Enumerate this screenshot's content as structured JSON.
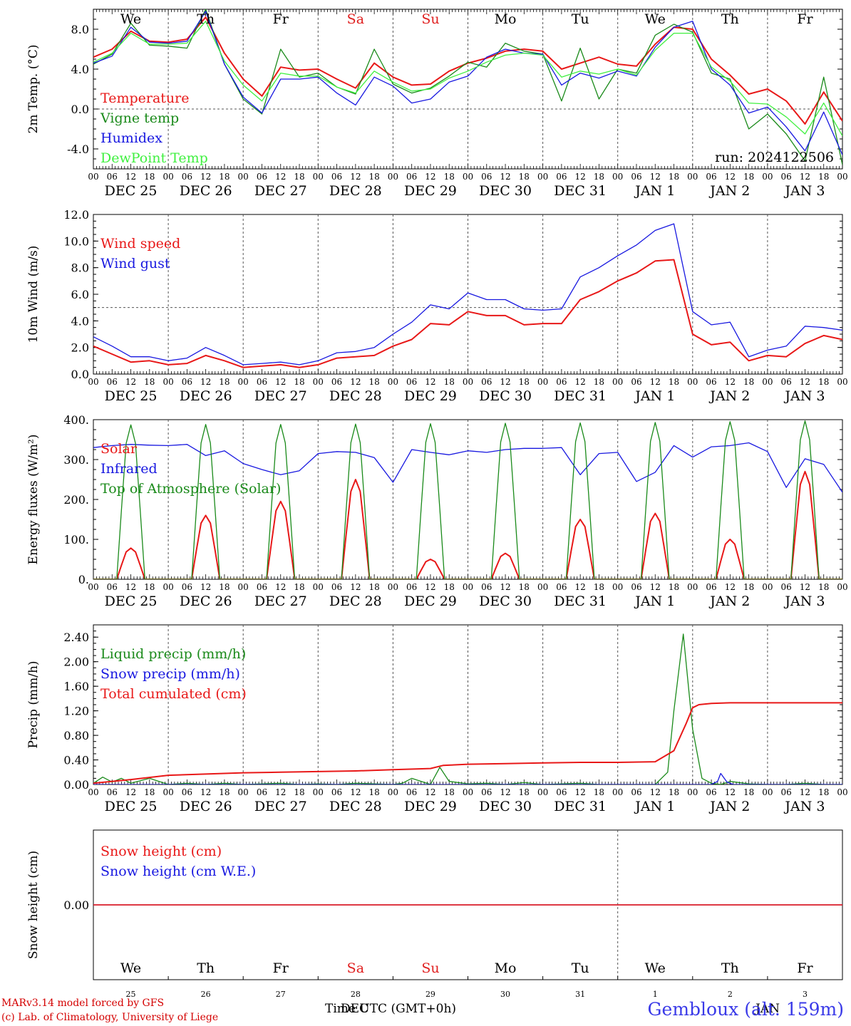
{
  "chart_data": [
    {
      "type": "line",
      "ylabel": "2m Temp. (°C)",
      "ylim": [
        -6,
        10
      ],
      "y_ticks": [
        "-4.0",
        "0.0",
        "4.0",
        "8.0"
      ],
      "y_tick_values": [
        -4,
        0,
        4,
        8
      ],
      "reference_line": 0,
      "day_labels": [
        "We",
        "Th",
        "Fr",
        "Sa",
        "Su",
        "Mo",
        "Tu",
        "We",
        "Th",
        "Fr"
      ],
      "weekend_color": "#e02020",
      "annotation": "run: 2024122506",
      "x_unit": "hours since 2024-12-25 00 UTC",
      "legend_placement": "left",
      "series": [
        {
          "name": "Temperature",
          "color": "#e81818",
          "x": [
            0,
            6,
            12,
            18,
            24,
            30,
            36,
            42,
            48,
            54,
            60,
            66,
            72,
            78,
            84,
            90,
            96,
            102,
            108,
            114,
            120,
            126,
            132,
            138,
            144,
            150,
            156,
            162,
            168,
            174,
            180,
            186,
            192,
            198,
            204,
            210,
            216,
            222,
            228,
            234,
            240
          ],
          "y": [
            5.2,
            6.0,
            7.8,
            6.8,
            6.7,
            7.0,
            9.2,
            5.6,
            3.0,
            1.3,
            4.2,
            3.9,
            4.0,
            3.0,
            2.1,
            4.6,
            3.2,
            2.4,
            2.5,
            3.8,
            4.6,
            5.1,
            5.8,
            6.0,
            5.8,
            4.0,
            4.6,
            5.2,
            4.5,
            4.3,
            6.5,
            8.2,
            8.0,
            5.0,
            3.4,
            1.5,
            2.0,
            0.8,
            -1.5,
            1.7,
            -1.2
          ]
        },
        {
          "name": "Vigne temp",
          "color": "#1a8a1a",
          "x": [
            0,
            6,
            12,
            18,
            24,
            30,
            36,
            42,
            48,
            54,
            60,
            66,
            72,
            78,
            84,
            90,
            96,
            102,
            108,
            114,
            120,
            126,
            132,
            138,
            144,
            150,
            156,
            162,
            168,
            174,
            180,
            186,
            192,
            198,
            204,
            210,
            216,
            222,
            228,
            234,
            240
          ],
          "y": [
            4.5,
            5.5,
            8.6,
            6.4,
            6.3,
            6.1,
            10.0,
            4.5,
            1.0,
            -0.5,
            6.0,
            3.2,
            3.6,
            2.2,
            1.5,
            6.0,
            2.5,
            1.6,
            2.1,
            3.3,
            4.7,
            4.2,
            6.6,
            5.8,
            5.5,
            0.8,
            6.1,
            1.0,
            4.0,
            3.6,
            7.4,
            8.5,
            7.7,
            3.6,
            3.0,
            -2.0,
            -0.5,
            -2.5,
            -5.2,
            3.2,
            -5.6
          ]
        },
        {
          "name": "Humidex",
          "color": "#1818e0",
          "x": [
            0,
            6,
            12,
            18,
            24,
            30,
            36,
            42,
            48,
            54,
            60,
            66,
            72,
            78,
            84,
            90,
            96,
            102,
            108,
            114,
            120,
            126,
            132,
            138,
            144,
            150,
            156,
            162,
            168,
            174,
            180,
            186,
            192,
            198,
            204,
            210,
            216,
            222,
            228,
            234,
            240
          ],
          "y": [
            4.6,
            5.3,
            8.2,
            6.7,
            6.6,
            6.8,
            9.8,
            4.5,
            1.2,
            -0.4,
            3.0,
            3.0,
            3.2,
            1.6,
            0.4,
            3.2,
            2.3,
            0.6,
            1.0,
            2.7,
            3.3,
            5.2,
            6.0,
            5.6,
            5.5,
            2.4,
            3.6,
            3.1,
            3.8,
            3.3,
            6.2,
            8.2,
            8.8,
            4.0,
            2.4,
            -0.4,
            0.2,
            -1.8,
            -4.2,
            -0.3,
            -4.6
          ]
        },
        {
          "name": "DewPoint Temp",
          "color": "#40f040",
          "x": [
            0,
            6,
            12,
            18,
            24,
            30,
            36,
            42,
            48,
            54,
            60,
            66,
            72,
            78,
            84,
            90,
            96,
            102,
            108,
            114,
            120,
            126,
            132,
            138,
            144,
            150,
            156,
            162,
            168,
            174,
            180,
            186,
            192,
            198,
            204,
            210,
            216,
            222,
            228,
            234,
            240
          ],
          "y": [
            4.7,
            5.6,
            7.6,
            6.5,
            6.5,
            6.6,
            8.8,
            4.8,
            2.4,
            0.8,
            3.6,
            3.3,
            3.3,
            2.2,
            1.6,
            3.8,
            2.7,
            1.8,
            2.0,
            3.1,
            3.8,
            4.7,
            5.4,
            5.6,
            5.4,
            3.2,
            3.8,
            3.5,
            4.0,
            3.4,
            5.9,
            7.6,
            7.6,
            4.2,
            2.8,
            0.6,
            0.5,
            -0.8,
            -2.5,
            0.6,
            -2.7
          ]
        }
      ]
    },
    {
      "type": "line",
      "ylabel": "10m Wind (m/s)",
      "ylim": [
        0,
        12
      ],
      "y_ticks": [
        "0.0",
        "2.0",
        "4.0",
        "6.0",
        "8.0",
        "10.0",
        "12.0"
      ],
      "y_tick_values": [
        0,
        2,
        4,
        6,
        8,
        10,
        12
      ],
      "reference_line": 5,
      "date_labels": [
        "DEC 25",
        "DEC 26",
        "DEC 27",
        "DEC 28",
        "DEC 29",
        "DEC 30",
        "DEC 31",
        "JAN  1",
        "JAN  2",
        "JAN  3"
      ],
      "hour_labels": [
        "00",
        "06",
        "12",
        "18"
      ],
      "x_unit": "hours since 2024-12-25 00 UTC",
      "legend_placement": "left",
      "series": [
        {
          "name": "Wind speed",
          "color": "#e81818",
          "x": [
            0,
            6,
            12,
            18,
            24,
            30,
            36,
            42,
            48,
            54,
            60,
            66,
            72,
            78,
            84,
            90,
            96,
            102,
            108,
            114,
            120,
            126,
            132,
            138,
            144,
            150,
            156,
            162,
            168,
            174,
            180,
            186,
            192,
            198,
            204,
            210,
            216,
            222,
            228,
            234,
            240
          ],
          "y": [
            2.1,
            1.5,
            0.9,
            1.0,
            0.7,
            0.8,
            1.4,
            1.0,
            0.5,
            0.6,
            0.7,
            0.5,
            0.7,
            1.2,
            1.3,
            1.4,
            2.1,
            2.6,
            3.8,
            3.7,
            4.7,
            4.4,
            4.4,
            3.7,
            3.8,
            3.8,
            5.6,
            6.2,
            7.0,
            7.6,
            8.5,
            8.6,
            3.0,
            2.2,
            2.4,
            1.0,
            1.4,
            1.3,
            2.3,
            2.9,
            2.6
          ]
        },
        {
          "name": "Wind gust",
          "color": "#1818e0",
          "x": [
            0,
            6,
            12,
            18,
            24,
            30,
            36,
            42,
            48,
            54,
            60,
            66,
            72,
            78,
            84,
            90,
            96,
            102,
            108,
            114,
            120,
            126,
            132,
            138,
            144,
            150,
            156,
            162,
            168,
            174,
            180,
            186,
            192,
            198,
            204,
            210,
            216,
            222,
            228,
            234,
            240
          ],
          "y": [
            2.8,
            2.1,
            1.3,
            1.3,
            1.0,
            1.2,
            2.0,
            1.4,
            0.7,
            0.8,
            0.9,
            0.7,
            1.0,
            1.6,
            1.7,
            2.0,
            3.0,
            3.9,
            5.2,
            4.9,
            6.1,
            5.6,
            5.6,
            4.9,
            4.8,
            4.9,
            7.3,
            8.0,
            8.9,
            9.7,
            10.8,
            11.3,
            4.7,
            3.7,
            3.9,
            1.3,
            1.8,
            2.1,
            3.6,
            3.5,
            3.3
          ]
        }
      ]
    },
    {
      "type": "line",
      "ylabel": "Energy fluxes (W/m²)",
      "ylim": [
        0,
        400
      ],
      "y_ticks": [
        "0.",
        "100.",
        "200.",
        "300.",
        "400."
      ],
      "y_tick_values": [
        0,
        100,
        200,
        300,
        400
      ],
      "date_labels": [
        "DEC 25",
        "DEC 26",
        "DEC 27",
        "DEC 28",
        "DEC 29",
        "DEC 30",
        "DEC 31",
        "JAN  1",
        "JAN  2",
        "JAN  3"
      ],
      "hour_labels": [
        "00",
        "06",
        "12",
        "18"
      ],
      "x_unit": "hours since 2024-12-25 00 UTC",
      "legend_placement": "left",
      "solar_peaks": [
        78,
        160,
        195,
        250,
        50,
        65,
        150,
        165,
        100,
        270
      ],
      "toa_peaks": [
        387,
        388,
        388,
        389,
        390,
        391,
        392,
        393,
        395,
        397
      ],
      "series": [
        {
          "name": "Solar",
          "color": "#e81818",
          "peaks": "solar_peaks"
        },
        {
          "name": "Infrared",
          "color": "#1818e0",
          "x": [
            0,
            6,
            12,
            18,
            24,
            30,
            36,
            42,
            48,
            54,
            60,
            66,
            72,
            78,
            84,
            90,
            96,
            102,
            108,
            114,
            120,
            126,
            132,
            138,
            144,
            150,
            156,
            162,
            168,
            174,
            180,
            186,
            192,
            198,
            204,
            210,
            216,
            222,
            228,
            234,
            240
          ],
          "y": [
            330,
            335,
            338,
            336,
            335,
            338,
            310,
            322,
            290,
            275,
            262,
            272,
            315,
            320,
            318,
            305,
            243,
            325,
            318,
            312,
            322,
            318,
            325,
            328,
            328,
            330,
            262,
            315,
            318,
            245,
            268,
            335,
            306,
            332,
            335,
            342,
            320,
            230,
            302,
            288,
            218
          ]
        },
        {
          "name": "Top of Atmosphere (Solar)",
          "color": "#1a8a1a",
          "peaks": "toa_peaks"
        }
      ]
    },
    {
      "type": "line",
      "ylabel": "Precip (mm/h)",
      "ylim": [
        0,
        2.6
      ],
      "y_ticks": [
        "0.00",
        "0.40",
        "0.80",
        "1.20",
        "1.60",
        "2.00",
        "2.40"
      ],
      "y_tick_values": [
        0,
        0.4,
        0.8,
        1.2,
        1.6,
        2.0,
        2.4
      ],
      "date_labels": [
        "DEC 25",
        "DEC 26",
        "DEC 27",
        "DEC 28",
        "DEC 29",
        "DEC 30",
        "DEC 31",
        "JAN  1",
        "JAN  2",
        "JAN  3"
      ],
      "hour_labels": [
        "00",
        "06",
        "12",
        "18"
      ],
      "x_unit": "hours since 2024-12-25 00 UTC",
      "legend_placement": "left",
      "series": [
        {
          "name": "Liquid precip (mm/h)",
          "color": "#1a8a1a",
          "x": [
            0,
            3,
            6,
            9,
            12,
            18,
            24,
            30,
            36,
            42,
            48,
            54,
            60,
            66,
            72,
            78,
            84,
            90,
            96,
            99,
            102,
            108,
            111,
            114,
            120,
            126,
            132,
            138,
            144,
            150,
            156,
            162,
            168,
            174,
            180,
            184,
            186,
            189,
            192,
            195,
            198,
            201,
            204,
            210,
            216,
            222,
            228,
            234,
            240
          ],
          "y": [
            0.02,
            0.12,
            0.04,
            0.1,
            0.02,
            0.1,
            0.0,
            0.02,
            0.0,
            0.02,
            0.0,
            0.01,
            0.02,
            0.0,
            0.01,
            0.0,
            0.02,
            0.01,
            0.0,
            0.02,
            0.1,
            0.0,
            0.28,
            0.05,
            0.01,
            0.02,
            0.0,
            0.03,
            0.0,
            0.01,
            0.02,
            0.0,
            0.0,
            0.0,
            0.0,
            0.2,
            1.2,
            2.45,
            0.9,
            0.1,
            0.02,
            0.0,
            0.05,
            0.01,
            0.0,
            0.0,
            0.02,
            0.0,
            0.0
          ]
        },
        {
          "name": "Snow precip (mm/h)",
          "color": "#1818e0",
          "x": [
            0,
            186,
            192,
            195,
            198,
            200,
            201,
            203,
            205,
            210,
            240
          ],
          "y": [
            0,
            0,
            0,
            0.0,
            0.0,
            0.05,
            0.18,
            0.04,
            0.0,
            0.0,
            0.0
          ]
        },
        {
          "name": "Total cumulated (cm)",
          "color": "#e81818",
          "x": [
            0,
            12,
            24,
            36,
            48,
            60,
            72,
            84,
            96,
            108,
            112,
            120,
            132,
            144,
            156,
            168,
            180,
            186,
            190,
            192,
            194,
            198,
            204,
            216,
            228,
            240
          ],
          "y": [
            0.02,
            0.08,
            0.15,
            0.17,
            0.19,
            0.2,
            0.21,
            0.22,
            0.24,
            0.26,
            0.31,
            0.33,
            0.34,
            0.35,
            0.36,
            0.36,
            0.37,
            0.55,
            1.0,
            1.25,
            1.3,
            1.32,
            1.33,
            1.33,
            1.33,
            1.33
          ]
        }
      ]
    },
    {
      "type": "line",
      "ylabel": "Snow height (cm)",
      "y_ticks": [
        "0.00"
      ],
      "y_tick_values": [
        0
      ],
      "ylim": [
        -0.9,
        0.9
      ],
      "day_labels": [
        "We",
        "Th",
        "Fr",
        "Sa",
        "Su",
        "Mo",
        "Tu",
        "We",
        "Th",
        "Fr"
      ],
      "day_numbers": [
        "25",
        "26",
        "27",
        "28",
        "29",
        "30",
        "31",
        "1",
        "2",
        "3"
      ],
      "x_unit": "hours since 2024-12-25 00 UTC",
      "legend_placement": "left",
      "series": [
        {
          "name": "Snow height (cm)",
          "color": "#e81818",
          "x": [
            0,
            240
          ],
          "y": [
            0,
            0
          ]
        },
        {
          "name": "Snow height (cm W.E.)",
          "color": "#1818e0",
          "x": [
            0,
            240
          ],
          "y": [
            0,
            0
          ]
        }
      ]
    }
  ],
  "footer": {
    "model": "MARv3.14 model forced by GFS",
    "lab": "(c) Lab. of Climatology, University of Liege",
    "xlabel": "Time UTC (GMT+0h)",
    "month_dec": "DEC",
    "month_jan": "JAN",
    "location": "Gembloux (alt. 159m)"
  }
}
